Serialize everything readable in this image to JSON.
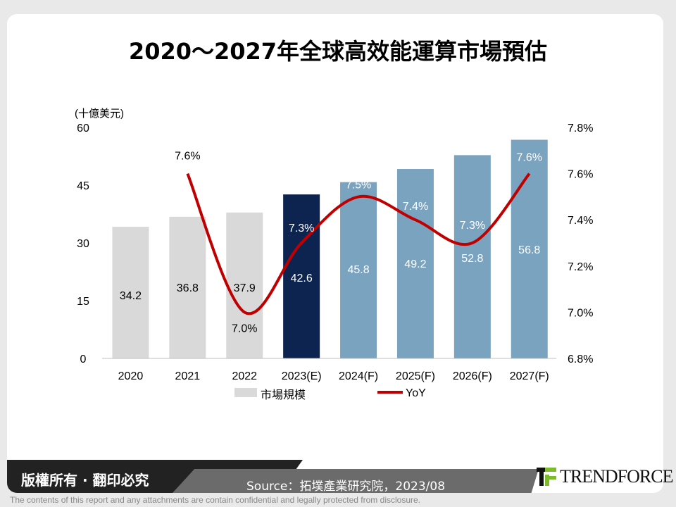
{
  "chart_data": {
    "type": "bar+line",
    "title": "2020～2027年全球高效能運算市場預估",
    "ylabel": "(十億美元)",
    "ylim": [
      0,
      60
    ],
    "yticks": [
      0,
      15,
      30,
      45,
      60
    ],
    "y2lim": [
      6.8,
      7.8
    ],
    "y2ticks": [
      "6.8%",
      "7.0%",
      "7.2%",
      "7.4%",
      "7.6%",
      "7.8%"
    ],
    "categories": [
      "2020",
      "2021",
      "2022",
      "2023(E)",
      "2024(F)",
      "2025(F)",
      "2026(F)",
      "2027(F)"
    ],
    "series": [
      {
        "name": "市場規模",
        "type": "bar",
        "values": [
          34.2,
          36.8,
          37.9,
          42.6,
          45.8,
          49.2,
          52.8,
          56.8
        ],
        "labels": [
          "34.2",
          "36.8",
          "37.9",
          "42.6",
          "45.8",
          "49.2",
          "52.8",
          "56.8"
        ]
      },
      {
        "name": "YoY",
        "type": "line",
        "axis": "right",
        "values": [
          null,
          7.6,
          7.0,
          7.3,
          7.5,
          7.4,
          7.3,
          7.6
        ],
        "labels": [
          "",
          "7.6%",
          "7.0%",
          "7.3%",
          "7.5%",
          "7.4%",
          "7.3%",
          "7.6%"
        ]
      }
    ],
    "colors": {
      "actual": "#d9d9d9",
      "estimate": "#0d2350",
      "forecast": "#7aa3bf",
      "line": "#c00000"
    },
    "legend": "bottom"
  },
  "footer": {
    "copyright": "版權所有 · 翻印必究",
    "source": "Source：拓墣產業研究院，2023/08",
    "brand": "TRENDFORCE",
    "disclaimer": "The contents of this report and any attachments are contain confidential and legally protected from disclosure."
  }
}
